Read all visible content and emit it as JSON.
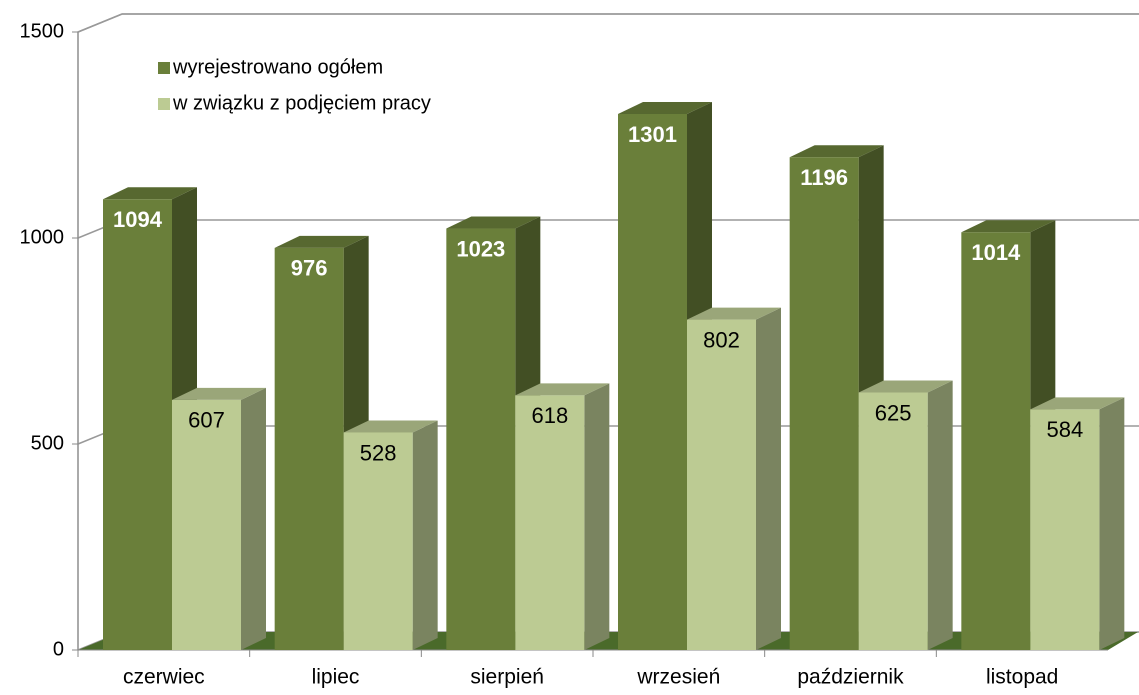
{
  "chart_data": {
    "type": "bar3d",
    "categories": [
      "czerwiec",
      "lipiec",
      "sierpień",
      "wrzesień",
      "październik",
      "listopad"
    ],
    "series": [
      {
        "name": "wyrejestrowano ogółem",
        "color": "#6a7f3a",
        "values": [
          1094,
          976,
          1023,
          1301,
          1196,
          1014
        ]
      },
      {
        "name": "w związku z podjęciem pracy",
        "color": "#bccb93",
        "values": [
          607,
          528,
          618,
          802,
          625,
          584
        ]
      }
    ],
    "ylim": [
      0,
      1500
    ],
    "yticks": [
      0,
      500,
      1000,
      1500
    ],
    "grid": true,
    "legend": "upper left"
  }
}
